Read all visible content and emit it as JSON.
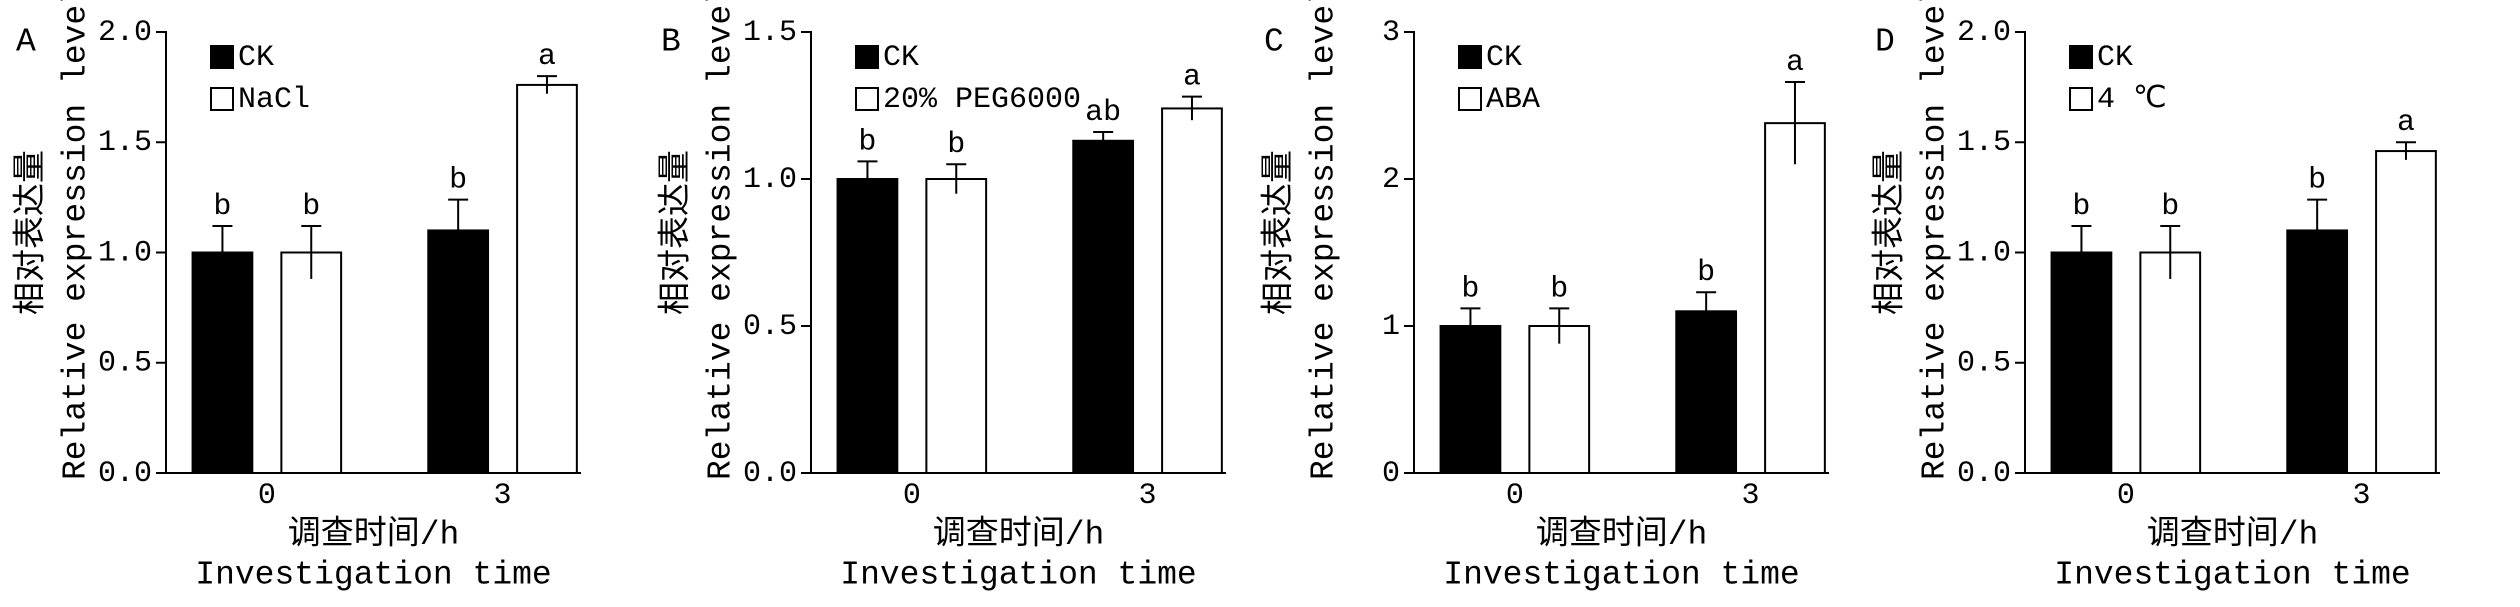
{
  "chart_data": [
    {
      "type": "bar",
      "panel": "A",
      "y_label": [
        "相对表达量",
        "Relative expression level"
      ],
      "x_label": [
        "调查时间/h",
        "Investigation time"
      ],
      "categories": [
        "0",
        "3"
      ],
      "ylim": [
        0,
        2
      ],
      "yticks": [
        {
          "value": 0,
          "label": "0.0"
        },
        {
          "value": 0.5,
          "label": "0.5"
        },
        {
          "value": 1,
          "label": "1.0"
        },
        {
          "value": 1.5,
          "label": "1.5"
        },
        {
          "value": 2,
          "label": "2.0"
        }
      ],
      "series": [
        {
          "name": "CK",
          "color": "#000000",
          "values": [
            1.0,
            1.1
          ],
          "errors": [
            0.12,
            0.14
          ],
          "letters": [
            "b",
            "b"
          ]
        },
        {
          "name": "NaCl",
          "color": "#ffffff",
          "values": [
            1.0,
            1.76
          ],
          "errors": [
            0.12,
            0.04
          ],
          "letters": [
            "b",
            "a"
          ]
        }
      ]
    },
    {
      "type": "bar",
      "panel": "B",
      "y_label": [
        "相对表达量",
        "Relative expression level"
      ],
      "x_label": [
        "调查时间/h",
        "Investigation time"
      ],
      "categories": [
        "0",
        "3"
      ],
      "ylim": [
        0,
        1.5
      ],
      "yticks": [
        {
          "value": 0,
          "label": "0.0"
        },
        {
          "value": 0.5,
          "label": "0.5"
        },
        {
          "value": 1,
          "label": "1.0"
        },
        {
          "value": 1.5,
          "label": "1.5"
        }
      ],
      "series": [
        {
          "name": "CK",
          "color": "#000000",
          "values": [
            1.0,
            1.13
          ],
          "errors": [
            0.06,
            0.03
          ],
          "letters": [
            "b",
            "ab"
          ]
        },
        {
          "name": "20% PEG6000",
          "color": "#ffffff",
          "values": [
            1.0,
            1.24
          ],
          "errors": [
            0.05,
            0.04
          ],
          "letters": [
            "b",
            "a"
          ]
        }
      ]
    },
    {
      "type": "bar",
      "panel": "C",
      "y_label": [
        "相对表达量",
        "Relative expression level"
      ],
      "x_label": [
        "调查时间/h",
        "Investigation time"
      ],
      "categories": [
        "0",
        "3"
      ],
      "ylim": [
        0,
        3
      ],
      "yticks": [
        0,
        1,
        2,
        3
      ],
      "series": [
        {
          "name": "CK",
          "color": "#000000",
          "values": [
            1.0,
            1.1
          ],
          "errors": [
            0.12,
            0.13
          ],
          "letters": [
            "b",
            "b"
          ]
        },
        {
          "name": "ABA",
          "color": "#ffffff",
          "values": [
            1.0,
            2.38
          ],
          "errors": [
            0.12,
            0.28
          ],
          "letters": [
            "b",
            "a"
          ]
        }
      ]
    },
    {
      "type": "bar",
      "panel": "D",
      "y_label": [
        "相对表达量",
        "Relative expression level"
      ],
      "x_label": [
        "调查时间/h",
        "Investigation time"
      ],
      "categories": [
        "0",
        "3"
      ],
      "ylim": [
        0,
        2
      ],
      "yticks": [
        {
          "value": 0,
          "label": "0.0"
        },
        {
          "value": 0.5,
          "label": "0.5"
        },
        {
          "value": 1,
          "label": "1.0"
        },
        {
          "value": 1.5,
          "label": "1.5"
        },
        {
          "value": 2,
          "label": "2.0"
        }
      ],
      "series": [
        {
          "name": "CK",
          "color": "#000000",
          "values": [
            1.0,
            1.1
          ],
          "errors": [
            0.12,
            0.14
          ],
          "letters": [
            "b",
            "b"
          ]
        },
        {
          "name": "4 ℃",
          "color": "#ffffff",
          "values": [
            1.0,
            1.46
          ],
          "errors": [
            0.12,
            0.04
          ],
          "letters": [
            "b",
            "a"
          ]
        }
      ]
    }
  ]
}
